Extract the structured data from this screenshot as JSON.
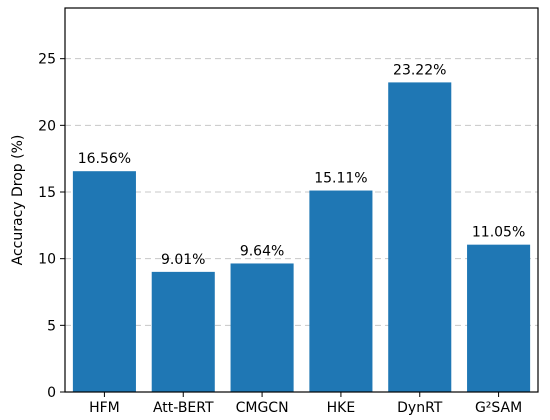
{
  "chart_data": {
    "type": "bar",
    "title": "",
    "xlabel": "",
    "ylabel": "Accuracy Drop (%)",
    "categories": [
      "HFM",
      "Att-BERT",
      "CMGCN",
      "HKE",
      "DynRT",
      "G²SAM"
    ],
    "values": [
      16.56,
      9.01,
      9.64,
      15.11,
      23.22,
      11.05
    ],
    "value_labels": [
      "16.56%",
      "9.01%",
      "9.64%",
      "15.11%",
      "23.22%",
      "11.05%"
    ],
    "ylim": [
      0,
      28.8
    ],
    "yticks": [
      0,
      5,
      10,
      15,
      20,
      25
    ],
    "ytick_labels": [
      "0",
      "5",
      "10",
      "15",
      "20",
      "25"
    ],
    "grid": "horizontal dashed",
    "legend": "none",
    "bar_color": "#1f77b4",
    "grid_color": "#c8c8c8",
    "axis_color": "#000000",
    "text_color": "#000000"
  }
}
